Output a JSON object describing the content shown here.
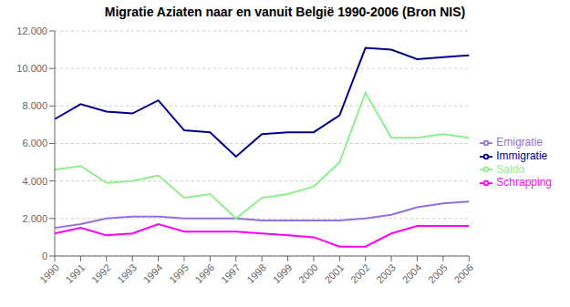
{
  "chart_data": {
    "type": "line",
    "title": "Migratie Aziaten naar en vanuit België 1990-2006 (Bron NIS)",
    "categories": [
      "1990",
      "1991",
      "1992",
      "1993",
      "1994",
      "1995",
      "1996",
      "1997",
      "1998",
      "1999",
      "2000",
      "2001",
      "2002",
      "2003",
      "2004",
      "2005",
      "2006"
    ],
    "series": [
      {
        "name": "Immigratie",
        "color": "#00008B",
        "values": [
          7300,
          8100,
          7700,
          7600,
          8300,
          6700,
          6600,
          5300,
          6500,
          6600,
          6600,
          7500,
          11100,
          11000,
          10500,
          10600,
          10700
        ]
      },
      {
        "name": "Emigratie",
        "color": "#9370DB",
        "values": [
          1500,
          1700,
          2000,
          2100,
          2100,
          2000,
          2000,
          2000,
          1900,
          1900,
          1900,
          1900,
          2000,
          2200,
          2600,
          2800,
          2900
        ]
      },
      {
        "name": "Schrapping",
        "color": "#FF00FF",
        "values": [
          1200,
          1500,
          1100,
          1200,
          1700,
          1300,
          1300,
          1300,
          1200,
          1100,
          1000,
          500,
          500,
          1200,
          1600,
          1600,
          1600
        ]
      },
      {
        "name": "Saldo",
        "color": "#90EE90",
        "values": [
          4600,
          4800,
          3900,
          4000,
          4300,
          3100,
          3300,
          2000,
          3100,
          3300,
          3700,
          5000,
          8700,
          6300,
          6300,
          6500,
          6300
        ]
      }
    ],
    "ylim": [
      0,
      12000
    ],
    "yticks": [
      0,
      {
        "value": 2000,
        "label": "2.000"
      },
      {
        "value": 4000,
        "label": "4.000"
      },
      {
        "value": 6000,
        "label": "6.000"
      },
      {
        "value": 8000,
        "label": "8.000"
      },
      {
        "value": 10000,
        "label": "10.000"
      },
      {
        "value": 12000,
        "label": "12.000"
      }
    ],
    "grid": true,
    "legend": "right"
  }
}
